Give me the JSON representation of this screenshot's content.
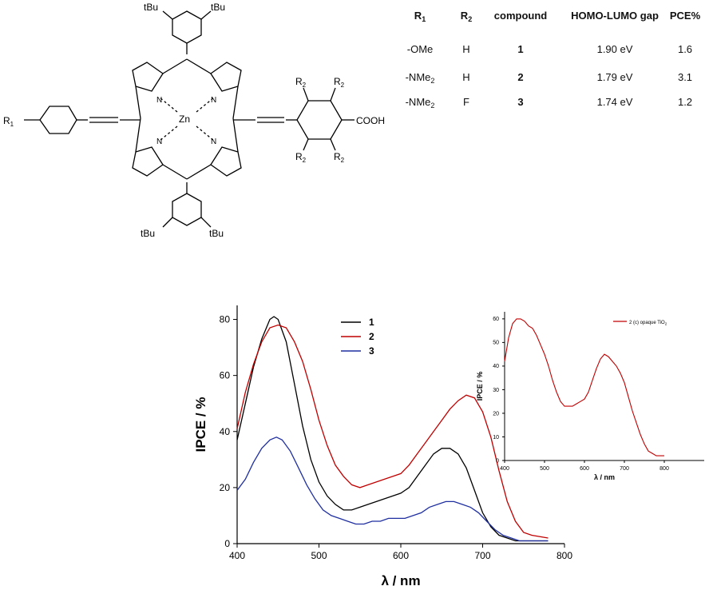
{
  "structure": {
    "labels": {
      "tbu": "tBu",
      "zn": "Zn",
      "n": "N",
      "r1": "R",
      "r2": "R",
      "sub1": "1",
      "sub2": "2",
      "cooh": "COOH"
    }
  },
  "table": {
    "headers": {
      "r1": "R",
      "r1_sub": "1",
      "r2": "R",
      "r2_sub": "2",
      "compound": "compound",
      "gap": "HOMO-LUMO gap",
      "pce": "PCE%"
    },
    "rows": [
      {
        "r1": "-OMe",
        "r1_sub": "",
        "r2": "H",
        "compound": "1",
        "gap": "1.90 eV",
        "pce": "1.6"
      },
      {
        "r1": "-NMe",
        "r1_sub": "2",
        "r2": "H",
        "compound": "2",
        "gap": "1.79 eV",
        "pce": "3.1"
      },
      {
        "r1": "-NMe",
        "r1_sub": "2",
        "r2": "F",
        "compound": "3",
        "gap": "1.74 eV",
        "pce": "1.2"
      }
    ]
  },
  "chart_data": [
    {
      "type": "line",
      "xlabel": "λ / nm",
      "ylabel": "IPCE / %",
      "xlim": [
        400,
        800
      ],
      "ylim": [
        0,
        85
      ],
      "xticks": [
        400,
        500,
        600,
        700,
        800
      ],
      "yticks": [
        0,
        20,
        40,
        60,
        80
      ],
      "legend_position": "top-center",
      "series": [
        {
          "name": "1",
          "color": "#000000",
          "x": [
            400,
            410,
            420,
            430,
            440,
            445,
            450,
            460,
            470,
            480,
            490,
            500,
            510,
            520,
            530,
            540,
            550,
            560,
            570,
            580,
            590,
            600,
            610,
            620,
            630,
            640,
            650,
            660,
            670,
            680,
            690,
            700,
            710,
            720,
            730,
            740,
            750,
            760,
            780
          ],
          "y": [
            37,
            50,
            63,
            73,
            80,
            81,
            80,
            72,
            57,
            42,
            30,
            22,
            17,
            14,
            12,
            12,
            13,
            14,
            15,
            16,
            17,
            18,
            20,
            24,
            28,
            32,
            34,
            34,
            32,
            27,
            19,
            11,
            6,
            3,
            2,
            1,
            1,
            1,
            1
          ]
        },
        {
          "name": "2",
          "color": "#c00000",
          "x": [
            400,
            410,
            420,
            430,
            440,
            450,
            460,
            470,
            480,
            490,
            500,
            510,
            520,
            530,
            540,
            550,
            560,
            570,
            580,
            590,
            600,
            610,
            620,
            630,
            640,
            650,
            660,
            670,
            680,
            690,
            700,
            710,
            720,
            730,
            740,
            750,
            760,
            780
          ],
          "y": [
            41,
            54,
            64,
            72,
            77,
            78,
            77,
            72,
            65,
            55,
            44,
            35,
            28,
            24,
            21,
            20,
            21,
            22,
            23,
            24,
            25,
            28,
            32,
            36,
            40,
            44,
            48,
            51,
            53,
            52,
            47,
            38,
            26,
            15,
            8,
            4,
            3,
            2
          ]
        },
        {
          "name": "3",
          "color": "#1f2fa0",
          "x": [
            400,
            410,
            420,
            430,
            440,
            448,
            455,
            465,
            475,
            485,
            495,
            505,
            515,
            525,
            535,
            545,
            555,
            565,
            575,
            585,
            595,
            605,
            615,
            625,
            635,
            645,
            655,
            665,
            675,
            685,
            695,
            705,
            715,
            725,
            735,
            745,
            760,
            780
          ],
          "y": [
            19,
            23,
            29,
            34,
            37,
            38,
            37,
            33,
            27,
            21,
            16,
            12,
            10,
            9,
            8,
            7,
            7,
            8,
            8,
            9,
            9,
            9,
            10,
            11,
            13,
            14,
            15,
            15,
            14,
            13,
            11,
            8,
            5,
            3,
            2,
            1,
            1,
            1
          ]
        }
      ]
    },
    {
      "type": "line",
      "xlabel": "λ / nm",
      "ylabel": "IPCE / %",
      "xlim": [
        400,
        900
      ],
      "ylim": [
        0,
        63
      ],
      "xticks": [
        400,
        500,
        600,
        700,
        800
      ],
      "yticks": [
        0,
        10,
        20,
        30,
        40,
        50,
        60
      ],
      "legend_position": "top-right",
      "series": [
        {
          "name": "2 (c) opaque TiO",
          "name_sub": "2",
          "color": "#c00000",
          "x": [
            400,
            410,
            420,
            430,
            440,
            450,
            460,
            470,
            480,
            490,
            500,
            510,
            520,
            530,
            540,
            550,
            560,
            570,
            580,
            590,
            600,
            610,
            620,
            630,
            640,
            650,
            660,
            670,
            680,
            690,
            700,
            710,
            720,
            730,
            740,
            750,
            760,
            770,
            780,
            790,
            800
          ],
          "y": [
            42,
            52,
            58,
            60,
            60,
            59,
            57,
            56,
            53,
            49,
            45,
            40,
            34,
            29,
            25,
            23,
            23,
            23,
            24,
            25,
            26,
            29,
            34,
            39,
            43,
            45,
            44,
            42,
            40,
            37,
            33,
            27,
            21,
            16,
            11,
            7,
            4,
            3,
            2,
            2,
            2
          ]
        }
      ]
    }
  ]
}
